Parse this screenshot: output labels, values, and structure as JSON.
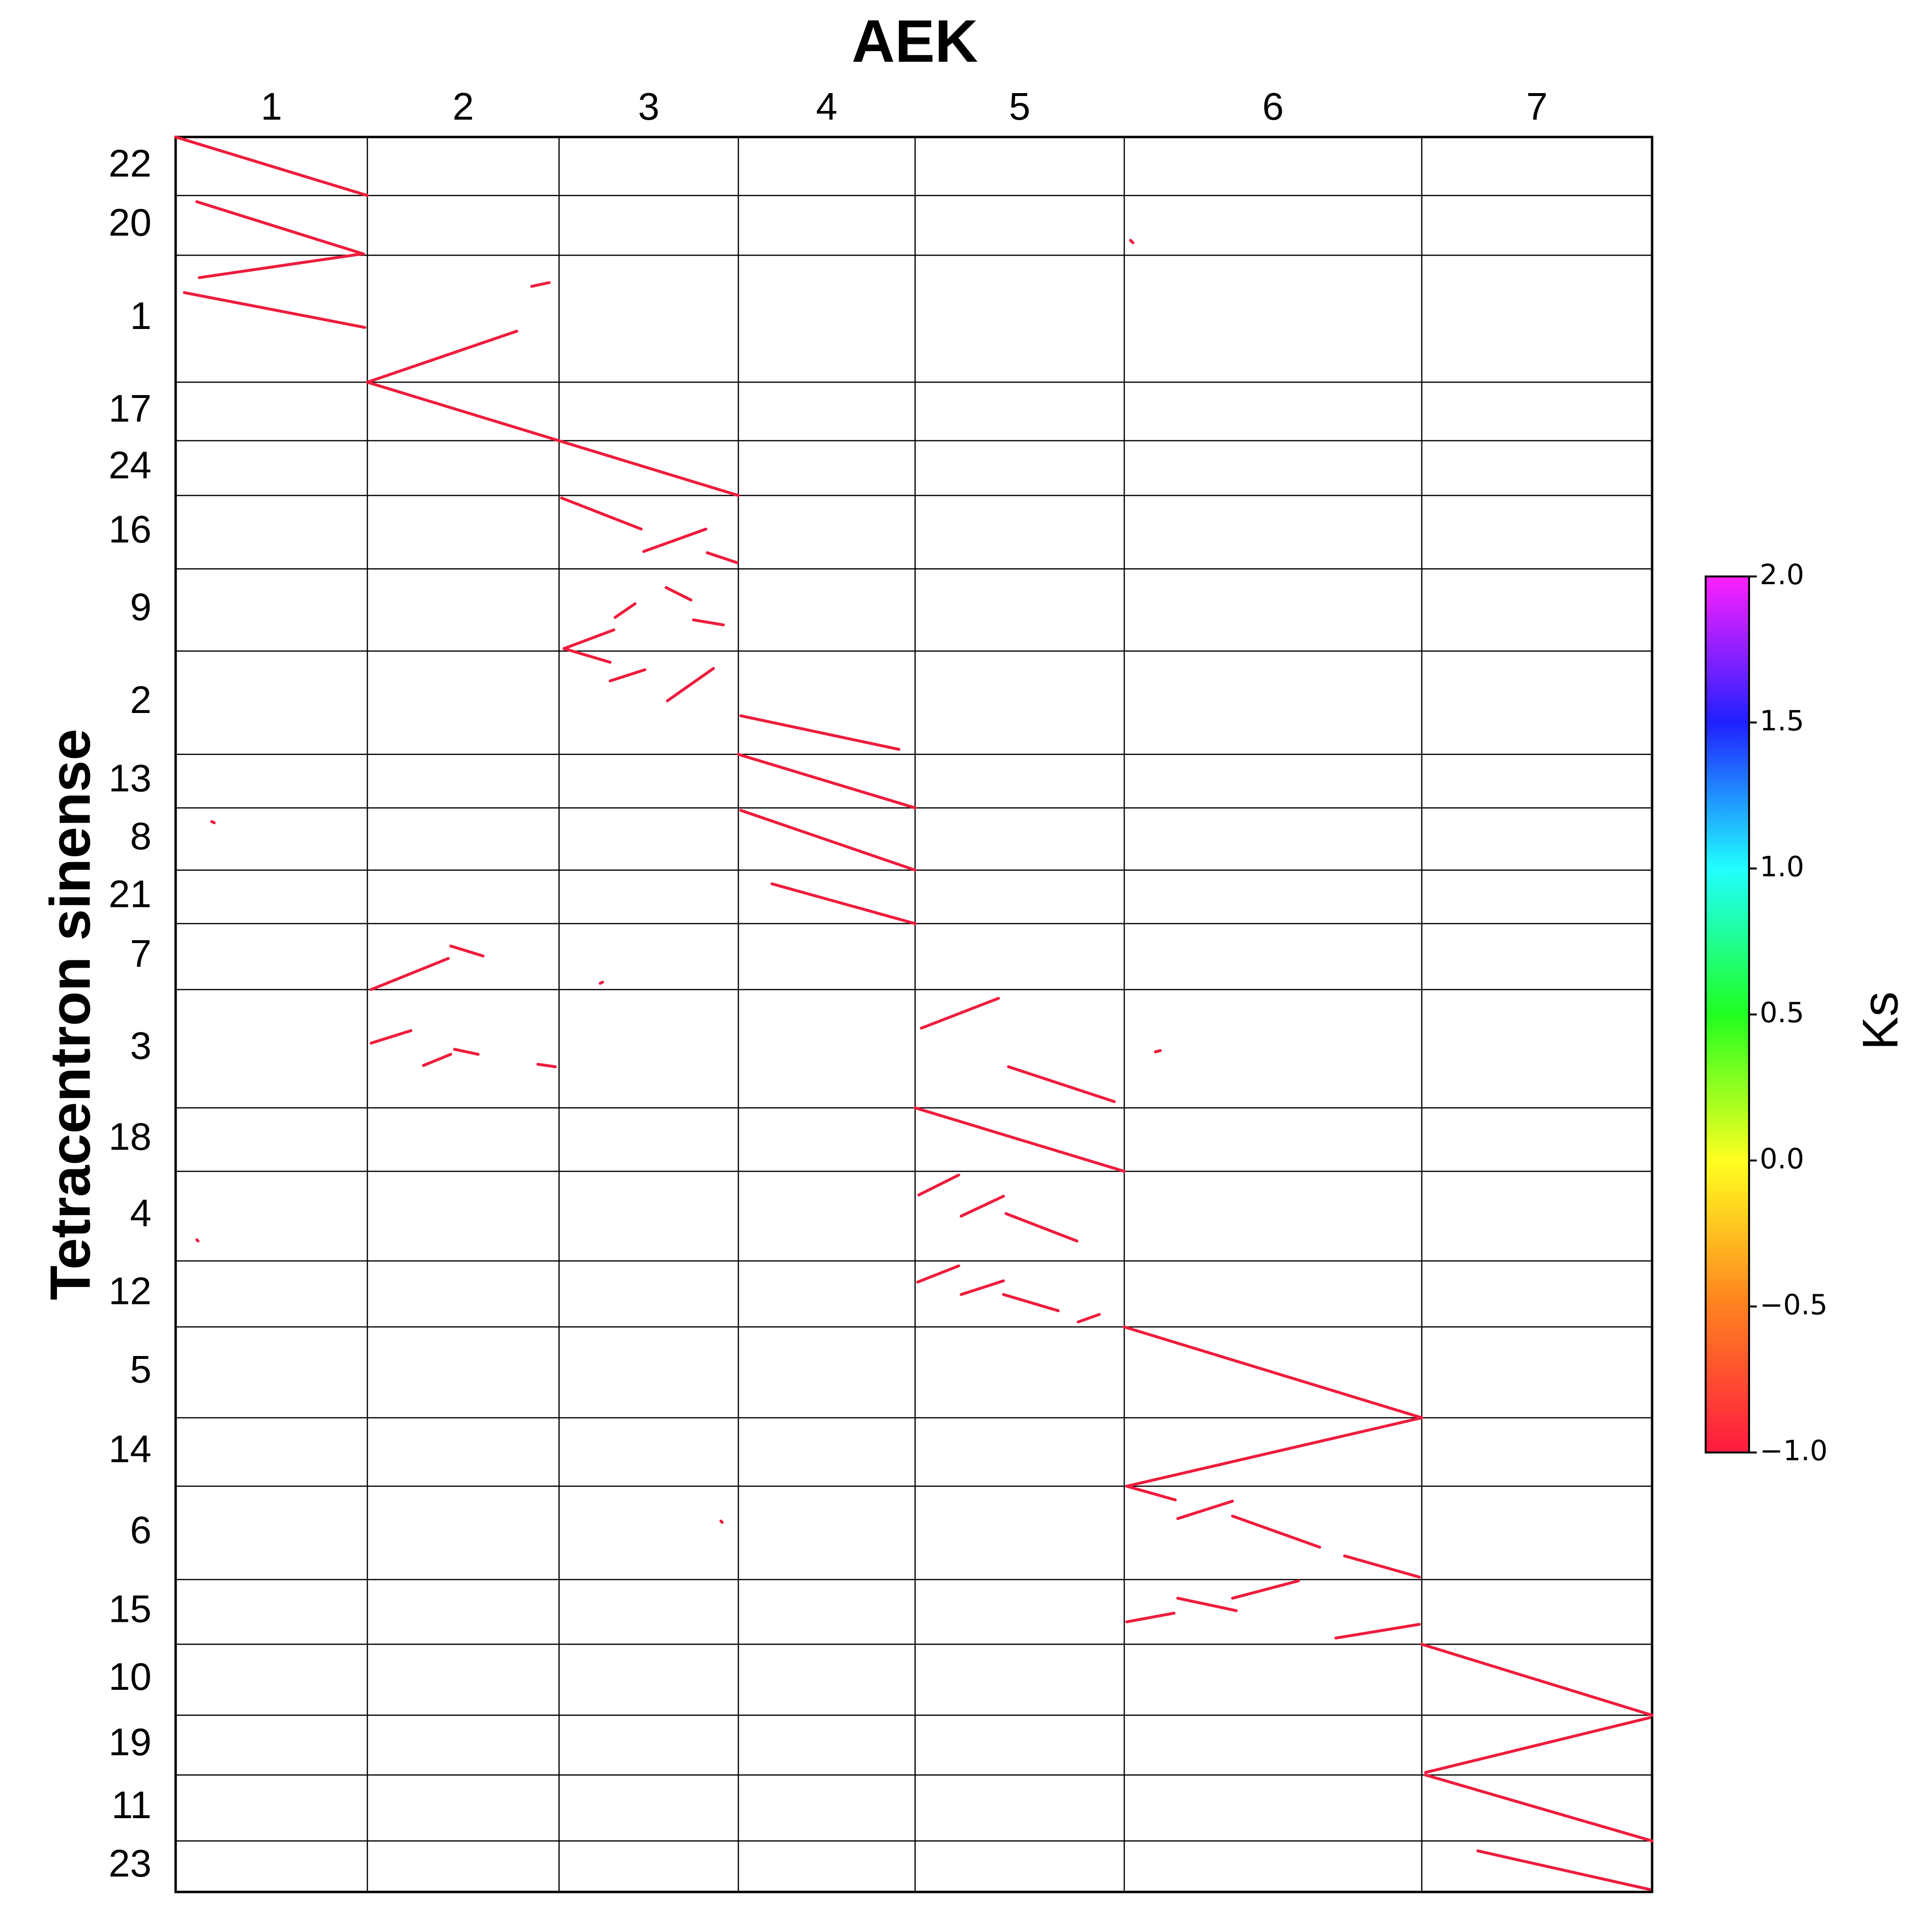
{
  "chart_data": {
    "type": "dotplot",
    "title": "AEK",
    "y_label": "Tetracentron sinense",
    "x_chromosomes": {
      "labels": [
        "1",
        "2",
        "3",
        "4",
        "5",
        "6",
        "7"
      ],
      "lengths": [
        154,
        154,
        144,
        142,
        168,
        239,
        185
      ]
    },
    "y_chromosomes": {
      "labels": [
        "22",
        "20",
        "1",
        "17",
        "24",
        "16",
        "9",
        "2",
        "13",
        "8",
        "21",
        "7",
        "3",
        "18",
        "4",
        "12",
        "5",
        "14",
        "6",
        "15",
        "10",
        "19",
        "11",
        "23"
      ],
      "lengths": [
        47,
        48,
        102,
        47,
        44,
        59,
        66,
        83,
        43,
        50,
        43,
        53,
        95,
        51,
        72,
        53,
        73,
        55,
        75,
        52,
        57,
        48,
        53,
        41
      ]
    },
    "color": "#ee1c3c",
    "segments": [
      {
        "x": [
          0,
          154
        ],
        "y": [
          0,
          47
        ]
      },
      {
        "x": [
          17,
          151
        ],
        "y": [
          52,
          94
        ]
      },
      {
        "x": [
          19,
          149
        ],
        "y": [
          113,
          94
        ]
      },
      {
        "x": [
          7,
          152
        ],
        "y": [
          125,
          153
        ]
      },
      {
        "x": [
          154,
          274
        ],
        "y": [
          197,
          156
        ]
      },
      {
        "x": [
          286,
          300
        ],
        "y": [
          120,
          117
        ]
      },
      {
        "x": [
          154,
          452
        ],
        "y": [
          197,
          288
        ]
      },
      {
        "x": [
          310,
          374
        ],
        "y": [
          290,
          315
        ]
      },
      {
        "x": [
          376,
          426
        ],
        "y": [
          333,
          315
        ]
      },
      {
        "x": [
          427,
          451
        ],
        "y": [
          334,
          342
        ]
      },
      {
        "x": [
          312,
          352
        ],
        "y": [
          411,
          396
        ]
      },
      {
        "x": [
          312,
          349
        ],
        "y": [
          411,
          422
        ]
      },
      {
        "x": [
          349,
          377
        ],
        "y": [
          437,
          428
        ]
      },
      {
        "x": [
          353,
          369
        ],
        "y": [
          386,
          375
        ]
      },
      {
        "x": [
          416,
          440
        ],
        "y": [
          388,
          392
        ]
      },
      {
        "x": [
          395,
          432
        ],
        "y": [
          453,
          427
        ]
      },
      {
        "x": [
          394,
          414
        ],
        "y": [
          362,
          372
        ]
      },
      {
        "x": [
          454,
          581
        ],
        "y": [
          465,
          492
        ]
      },
      {
        "x": [
          452,
          594
        ],
        "y": [
          496,
          539
        ]
      },
      {
        "x": [
          454,
          594
        ],
        "y": [
          541,
          589
        ]
      },
      {
        "x": [
          479,
          594
        ],
        "y": [
          600,
          632
        ]
      },
      {
        "x": [
          157,
          219
        ],
        "y": [
          685,
          660
        ]
      },
      {
        "x": [
          221,
          247
        ],
        "y": [
          650,
          658
        ]
      },
      {
        "x": [
          157,
          189
        ],
        "y": [
          728,
          718
        ]
      },
      {
        "x": [
          199,
          221
        ],
        "y": [
          746,
          737
        ]
      },
      {
        "x": [
          224,
          243
        ],
        "y": [
          733,
          737
        ]
      },
      {
        "x": [
          291,
          305
        ],
        "y": [
          745,
          747
        ]
      },
      {
        "x": [
          599,
          661
        ],
        "y": [
          716,
          692
        ]
      },
      {
        "x": [
          669,
          754
        ],
        "y": [
          747,
          775
        ]
      },
      {
        "x": [
          594,
          762
        ],
        "y": [
          780,
          831
        ]
      },
      {
        "x": [
          597,
          629
        ],
        "y": [
          850,
          834
        ]
      },
      {
        "x": [
          631,
          665
        ],
        "y": [
          867,
          851
        ]
      },
      {
        "x": [
          667,
          724
        ],
        "y": [
          865,
          887
        ]
      },
      {
        "x": [
          596,
          629
        ],
        "y": [
          920,
          907
        ]
      },
      {
        "x": [
          631,
          665
        ],
        "y": [
          930,
          919
        ]
      },
      {
        "x": [
          665,
          709
        ],
        "y": [
          930,
          943
        ]
      },
      {
        "x": [
          725,
          742
        ],
        "y": [
          952,
          946
        ]
      },
      {
        "x": [
          762,
          1001
        ],
        "y": [
          956,
          1029
        ]
      },
      {
        "x": [
          764,
          1001
        ],
        "y": [
          1084,
          1029
        ]
      },
      {
        "x": [
          764,
          803
        ],
        "y": [
          1084,
          1095
        ]
      },
      {
        "x": [
          805,
          849
        ],
        "y": [
          1110,
          1096
        ]
      },
      {
        "x": [
          849,
          919
        ],
        "y": [
          1108,
          1133
        ]
      },
      {
        "x": [
          939,
          999
        ],
        "y": [
          1140,
          1157
        ]
      },
      {
        "x": [
          764,
          802
        ],
        "y": [
          1193,
          1186
        ]
      },
      {
        "x": [
          805,
          852
        ],
        "y": [
          1174,
          1184
        ]
      },
      {
        "x": [
          849,
          902
        ],
        "y": [
          1174,
          1160
        ]
      },
      {
        "x": [
          932,
          999
        ],
        "y": [
          1206,
          1195
        ]
      },
      {
        "x": [
          1001,
          1186
        ],
        "y": [
          1211,
          1268
        ]
      },
      {
        "x": [
          1004,
          1184
        ],
        "y": [
          1314,
          1270
        ]
      },
      {
        "x": [
          1004,
          1186
        ],
        "y": [
          1316,
          1369
        ]
      },
      {
        "x": [
          1046,
          1184
        ],
        "y": [
          1377,
          1408
        ]
      },
      {
        "x": [
          767,
          769
        ],
        "y": [
          83,
          85
        ]
      },
      {
        "x": [
          29,
          31
        ],
        "y": [
          550,
          551
        ]
      },
      {
        "x": [
          17,
          18
        ],
        "y": [
          886,
          887
        ]
      },
      {
        "x": [
          341,
          343
        ],
        "y": [
          680,
          679
        ]
      },
      {
        "x": [
          787,
          791
        ],
        "y": [
          735,
          734
        ]
      },
      {
        "x": [
          438,
          439
        ],
        "y": [
          1112,
          1113
        ]
      }
    ],
    "colorbar": {
      "label": "Ks",
      "lim": [
        -1,
        2
      ],
      "ticks": [
        {
          "value": -1,
          "label": "−1.0"
        },
        {
          "value": -0.5,
          "label": "−0.5"
        },
        {
          "value": 0,
          "label": "0.0"
        },
        {
          "value": 0.5,
          "label": "0.5"
        },
        {
          "value": 1,
          "label": "1.0"
        },
        {
          "value": 1.5,
          "label": "1.5"
        },
        {
          "value": 2,
          "label": "2.0"
        }
      ],
      "colormap": [
        "#ff1a40",
        "#ff8020",
        "#ffff20",
        "#20ff20",
        "#20ffff",
        "#2020ff",
        "#ff20ff"
      ]
    }
  }
}
